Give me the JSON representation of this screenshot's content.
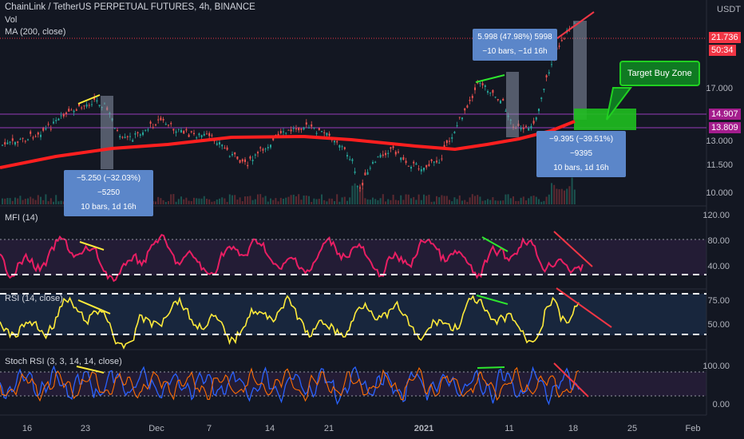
{
  "header": {
    "title": "ChainLink / TetherUS PERPETUAL FUTURES, 4h, BINANCE",
    "vol": "Vol",
    "ma": "MA (200, close)",
    "currency": "USDT"
  },
  "price_tags": {
    "last": "21.736",
    "countdown": "50:34",
    "level_high": "14.907",
    "level_low": "13.809"
  },
  "price_axis": [
    "17.000",
    "13.000",
    "11.500",
    "10.000"
  ],
  "indicators": {
    "mfi": {
      "title": "MFI (14)",
      "ticks": [
        "120.00",
        "80.00",
        "40.00"
      ]
    },
    "rsi": {
      "title": "RSI (14, close)",
      "ticks": [
        "75.00",
        "50.00"
      ]
    },
    "stoch": {
      "title": "Stoch RSI (3, 3, 14, 14, close)",
      "ticks": [
        "100.00",
        "0.00"
      ]
    }
  },
  "x_axis": [
    "16",
    "23",
    "Dec",
    "7",
    "14",
    "21",
    "2021",
    "11",
    "18",
    "25",
    "Feb"
  ],
  "measures": [
    {
      "line1": "−5.250 (−32.03%) −5250",
      "line2": "10 bars, 1d 16h"
    },
    {
      "line1": "5.998 (47.98%) 5998",
      "line2": "−10 bars, −1d 16h"
    },
    {
      "line1": "−9.395 (−39.51%) −9395",
      "line2": "10 bars, 1d 16h"
    }
  ],
  "zone": {
    "label": "Target Buy Zone"
  },
  "colors": {
    "ma": "#ff1f1f",
    "mfi": "#e91e63",
    "rsi": "#ffeb3b",
    "stoch_k": "#2962ff",
    "stoch_d": "#ff6d00",
    "zone": "#1fbf1f"
  },
  "chart_data": {
    "type": "line",
    "title": "ChainLink / TetherUS PERPETUAL FUTURES, 4h, BINANCE",
    "ylim": [
      9.5,
      23
    ],
    "series": [
      {
        "name": "MA (200, close)",
        "x": [
          "16",
          "23",
          "Dec",
          "7",
          "14",
          "21",
          "2021",
          "11",
          "18"
        ],
        "values": [
          11.0,
          11.6,
          12.2,
          12.7,
          13.0,
          13.1,
          12.7,
          12.9,
          13.7
        ]
      }
    ]
  }
}
